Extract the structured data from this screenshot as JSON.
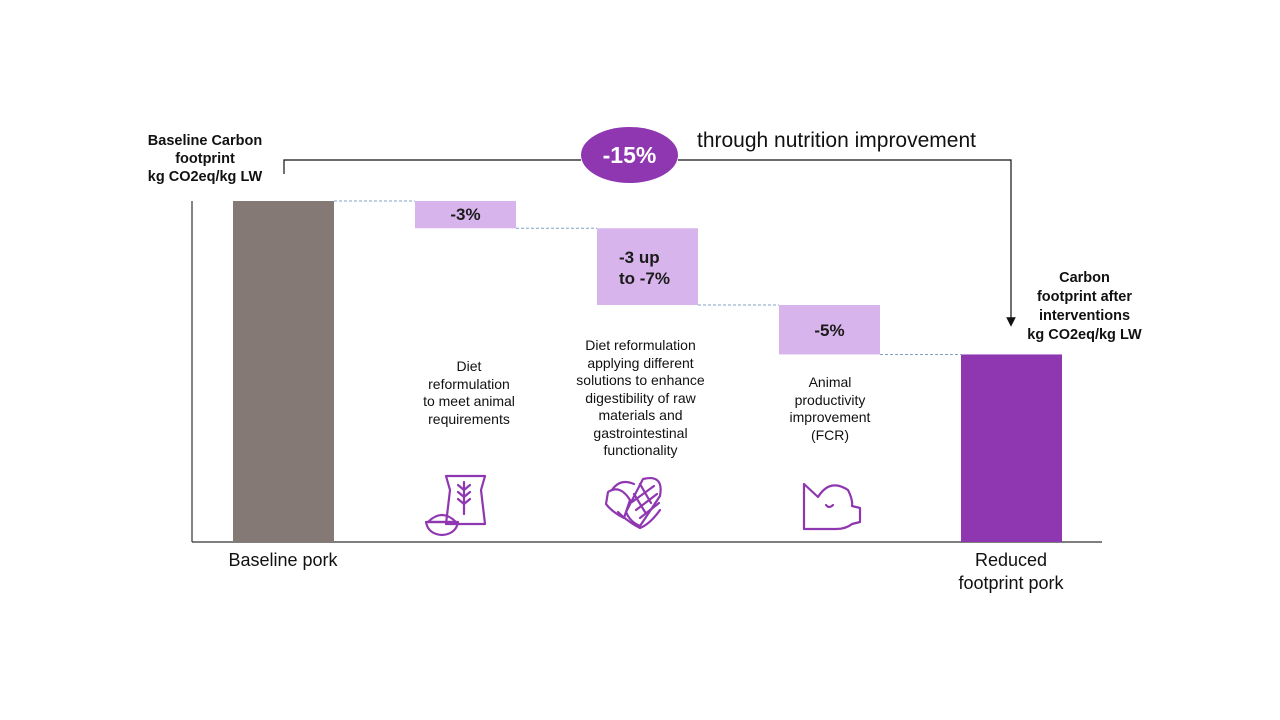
{
  "chart_data": {
    "type": "waterfall",
    "colors": {
      "baseline": "#857975",
      "reduced": "#8f37b0",
      "step": "#d8b4ec",
      "badge": "#8f37b0",
      "connector": "#7fa3c4",
      "icon": "#8f37b0"
    },
    "baseline": {
      "category": "Baseline pork",
      "header": "Baseline Carbon\nfootprint\nkg CO2eq/kg LW"
    },
    "steps": [
      {
        "label": "-3%",
        "low_pct": 3,
        "high_pct": 3,
        "description": "Diet\nreformulation\nto meet animal\nrequirements",
        "icon": "feed-bag-icon"
      },
      {
        "label": "-3 up\nto -7%",
        "low_pct": 3,
        "high_pct": 7,
        "description": "Diet reformulation\napplying different\nsolutions to enhance\ndigestibility of raw\nmaterials and\ngastrointestinal\nfunctionality",
        "icon": "corn-icon"
      },
      {
        "label": "-5%",
        "low_pct": 5,
        "high_pct": 5,
        "description": "Animal\nproductivity\nimprovement\n(FCR)",
        "icon": "pig-head-icon"
      }
    ],
    "result": {
      "category": "Reduced\nfootprint pork",
      "header": "Carbon\nfootprint after\ninterventions\nkg CO2eq/kg LW"
    },
    "total": {
      "badge": "-15%",
      "text": "through nutrition improvement"
    },
    "ylim": [
      0,
      100
    ]
  }
}
